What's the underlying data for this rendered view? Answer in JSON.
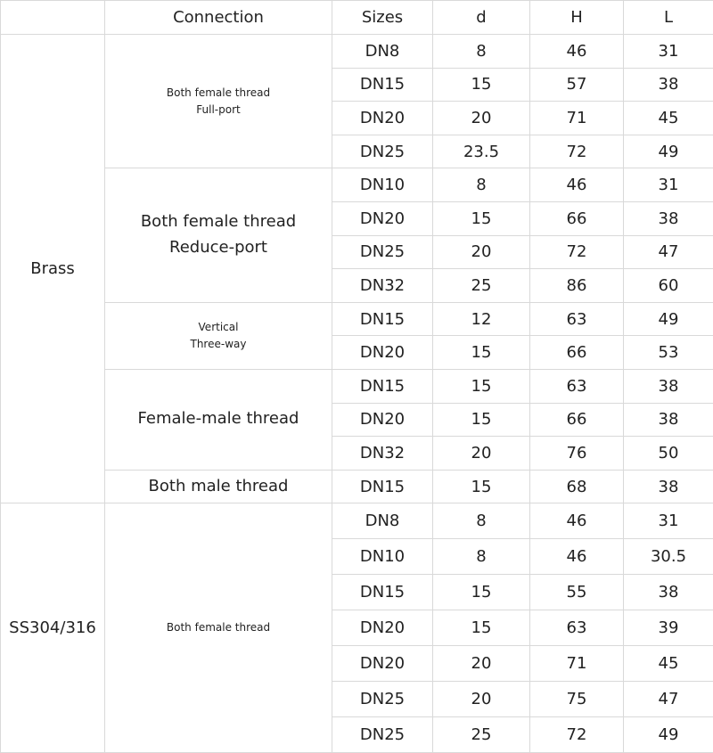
{
  "table": {
    "header": [
      "Connection",
      "Sizes",
      "d",
      "H",
      "L"
    ],
    "materials": [
      {
        "name": "Brass",
        "groups": [
          {
            "connection": [
              "Both female thread",
              "Full-port"
            ],
            "rows": [
              [
                "DN8",
                8,
                46,
                31
              ],
              [
                "DN15",
                15,
                57,
                38
              ],
              [
                "DN20",
                20,
                71,
                45
              ],
              [
                "DN25",
                23.5,
                72,
                49
              ]
            ]
          },
          {
            "connection": [
              "Both female thread",
              "Reduce-port"
            ],
            "rows": [
              [
                "DN10",
                8,
                46,
                31
              ],
              [
                "DN20",
                15,
                66,
                38
              ],
              [
                "DN25",
                20,
                72,
                47
              ],
              [
                "DN32",
                25,
                86,
                60
              ]
            ]
          },
          {
            "connection": [
              "Vertical",
              "Three-way"
            ],
            "rows": [
              [
                "DN15",
                12,
                63,
                49
              ],
              [
                "DN20",
                15,
                66,
                53
              ]
            ]
          },
          {
            "connection": [
              "Female-male thread"
            ],
            "rows": [
              [
                "DN15",
                15,
                63,
                38
              ],
              [
                "DN20",
                15,
                66,
                38
              ],
              [
                "DN32",
                20,
                76,
                50
              ]
            ]
          },
          {
            "connection": [
              "Both male thread"
            ],
            "rows": [
              [
                "DN15",
                15,
                68,
                38
              ]
            ]
          }
        ]
      },
      {
        "name": "SS304/316",
        "groups": [
          {
            "connection": [
              "Both female thread"
            ],
            "rows": [
              [
                "DN8",
                8,
                46,
                31
              ],
              [
                "DN10",
                8,
                46,
                30.5
              ],
              [
                "DN15",
                15,
                55,
                38
              ],
              [
                "DN20",
                15,
                63,
                39
              ],
              [
                "DN20",
                20,
                71,
                45
              ],
              [
                "DN25",
                20,
                75,
                47
              ],
              [
                "DN25",
                25,
                72,
                49
              ]
            ]
          }
        ]
      }
    ]
  }
}
